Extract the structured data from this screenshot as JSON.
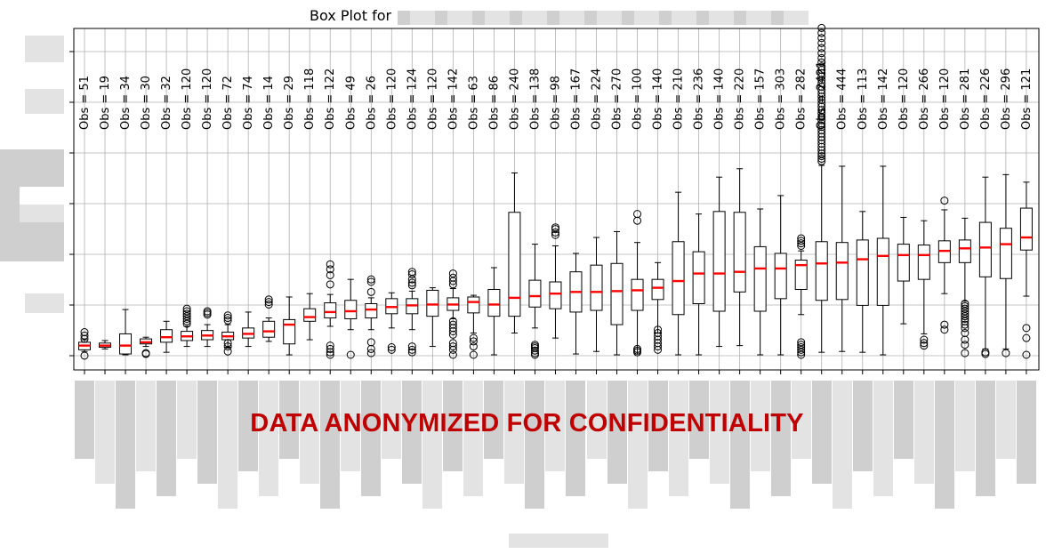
{
  "chart_data": {
    "type": "box",
    "title": "Box Plot for",
    "grid": true,
    "median_color": "#ff0000",
    "box_color": "#000000",
    "obs_prefix": "Obs = ",
    "series": [
      {
        "obs": 51,
        "whislo": 0.2,
        "q1": 0.3,
        "med": 0.55,
        "q3": 0.75,
        "whishi": 0.9,
        "fliers": [
          -0.05,
          0.95,
          1.15,
          1.35
        ]
      },
      {
        "obs": 19,
        "whislo": 0.35,
        "q1": 0.45,
        "med": 0.55,
        "q3": 0.7,
        "whishi": 0.85,
        "fliers": []
      },
      {
        "obs": 34,
        "whislo": 0.0,
        "q1": 0.05,
        "med": 0.55,
        "q3": 1.25,
        "whishi": 2.7,
        "fliers": []
      },
      {
        "obs": 30,
        "whislo": 0.5,
        "q1": 0.65,
        "med": 0.75,
        "q3": 0.95,
        "whishi": 1.05,
        "fliers": [
          0.05,
          0.1
        ]
      },
      {
        "obs": 32,
        "whislo": 0.15,
        "q1": 0.75,
        "med": 1.05,
        "q3": 1.5,
        "whishi": 2.0,
        "fliers": []
      },
      {
        "obs": 120,
        "whislo": 0.5,
        "q1": 0.85,
        "med": 1.1,
        "q3": 1.4,
        "whishi": 1.7,
        "fliers": [
          1.85,
          2.0,
          2.15,
          2.3,
          2.45,
          2.6,
          2.75
        ]
      },
      {
        "obs": 120,
        "whislo": 0.5,
        "q1": 0.9,
        "med": 1.15,
        "q3": 1.45,
        "whishi": 1.8,
        "fliers": [
          2.4,
          2.5,
          2.6
        ]
      },
      {
        "obs": 72,
        "whislo": 0.45,
        "q1": 0.9,
        "med": 1.1,
        "q3": 1.35,
        "whishi": 1.8,
        "fliers": [
          0.2,
          0.5,
          0.7,
          2.05,
          2.2,
          2.35
        ]
      },
      {
        "obs": 74,
        "whislo": 0.5,
        "q1": 1.0,
        "med": 1.25,
        "q3": 1.6,
        "whishi": 2.55,
        "fliers": []
      },
      {
        "obs": 14,
        "whislo": 0.8,
        "q1": 1.05,
        "med": 1.4,
        "q3": 2.0,
        "whishi": 2.2,
        "fliers": [
          3.0,
          3.15,
          3.3
        ]
      },
      {
        "obs": 29,
        "whislo": 0.0,
        "q1": 0.65,
        "med": 1.8,
        "q3": 2.1,
        "whishi": 3.45,
        "fliers": []
      },
      {
        "obs": 118,
        "whislo": 0.9,
        "q1": 2.0,
        "med": 2.25,
        "q3": 2.75,
        "whishi": 3.65,
        "fliers": []
      },
      {
        "obs": 122,
        "whislo": 1.7,
        "q1": 2.2,
        "med": 2.55,
        "q3": 3.1,
        "whishi": 3.6,
        "fliers": [
          0.0,
          0.15,
          0.35,
          0.55,
          4.2,
          4.75,
          5.1,
          5.4
        ]
      },
      {
        "obs": 49,
        "whislo": 1.5,
        "q1": 2.15,
        "med": 2.6,
        "q3": 3.25,
        "whishi": 4.5,
        "fliers": [
          0.0
        ]
      },
      {
        "obs": 26,
        "whislo": 1.5,
        "q1": 2.2,
        "med": 2.7,
        "q3": 3.05,
        "whishi": 3.4,
        "fliers": [
          0.1,
          0.35,
          0.75,
          3.75,
          4.35,
          4.5
        ]
      },
      {
        "obs": 120,
        "whislo": 1.6,
        "q1": 2.45,
        "med": 2.85,
        "q3": 3.35,
        "whishi": 3.7,
        "fliers": [
          0.3,
          0.45
        ]
      },
      {
        "obs": 124,
        "whislo": 1.5,
        "q1": 2.45,
        "med": 2.95,
        "q3": 3.35,
        "whishi": 3.8,
        "fliers": [
          0.15,
          0.3,
          0.5,
          4.15,
          4.3,
          4.5,
          4.8,
          4.95
        ]
      },
      {
        "obs": 120,
        "whislo": 0.5,
        "q1": 2.3,
        "med": 3.0,
        "q3": 3.85,
        "whishi": 4.0,
        "fliers": []
      },
      {
        "obs": 142,
        "whislo": 2.15,
        "q1": 2.65,
        "med": 3.0,
        "q3": 3.4,
        "whishi": 3.95,
        "fliers": [
          0.0,
          0.3,
          0.5,
          0.7,
          1.2,
          1.4,
          1.6,
          1.8,
          2.0,
          4.2,
          4.4,
          4.6,
          4.85
        ]
      },
      {
        "obs": 63,
        "whislo": 1.3,
        "q1": 2.5,
        "med": 3.15,
        "q3": 3.45,
        "whishi": 3.55,
        "fliers": [
          0.0,
          0.5,
          0.8,
          1.0
        ]
      },
      {
        "obs": 86,
        "whislo": 0.0,
        "q1": 2.3,
        "med": 3.0,
        "q3": 3.9,
        "whishi": 5.2,
        "fliers": []
      },
      {
        "obs": 240,
        "whislo": 1.3,
        "q1": 2.3,
        "med": 3.4,
        "q3": 8.5,
        "whishi": 10.85,
        "fliers": []
      },
      {
        "obs": 138,
        "whislo": 1.6,
        "q1": 2.85,
        "med": 3.5,
        "q3": 4.45,
        "whishi": 6.6,
        "fliers": [
          0.0,
          0.1,
          0.25,
          0.4,
          0.5,
          0.6
        ]
      },
      {
        "obs": 98,
        "whislo": 1.0,
        "q1": 2.75,
        "med": 3.65,
        "q3": 4.35,
        "whishi": 6.5,
        "fliers": [
          7.15,
          7.3,
          7.5,
          7.6
        ]
      },
      {
        "obs": 167,
        "whislo": 0.05,
        "q1": 2.55,
        "med": 3.75,
        "q3": 4.95,
        "whishi": 6.05,
        "fliers": []
      },
      {
        "obs": 224,
        "whislo": 0.2,
        "q1": 2.65,
        "med": 3.75,
        "q3": 5.35,
        "whishi": 7.0,
        "fliers": []
      },
      {
        "obs": 270,
        "whislo": 0.0,
        "q1": 1.8,
        "med": 3.8,
        "q3": 5.45,
        "whishi": 7.35,
        "fliers": []
      },
      {
        "obs": 100,
        "whislo": 0.05,
        "q1": 2.65,
        "med": 3.85,
        "q3": 4.5,
        "whishi": 6.7,
        "fliers": [
          0.15,
          0.25,
          0.35,
          8.0,
          8.4
        ]
      },
      {
        "obs": 140,
        "whislo": 1.3,
        "q1": 3.3,
        "med": 4.0,
        "q3": 4.5,
        "whishi": 5.5,
        "fliers": [
          0.3,
          0.5,
          0.7,
          0.9,
          1.1,
          1.3,
          1.5
        ]
      },
      {
        "obs": 210,
        "whislo": 0.0,
        "q1": 2.4,
        "med": 4.4,
        "q3": 6.75,
        "whishi": 9.7,
        "fliers": []
      },
      {
        "obs": 236,
        "whislo": 0.0,
        "q1": 3.05,
        "med": 4.85,
        "q3": 6.15,
        "whishi": 8.4,
        "fliers": []
      },
      {
        "obs": 140,
        "whislo": 0.5,
        "q1": 2.6,
        "med": 4.85,
        "q3": 8.55,
        "whishi": 10.6,
        "fliers": []
      },
      {
        "obs": 220,
        "whislo": 0.55,
        "q1": 3.75,
        "med": 4.95,
        "q3": 8.5,
        "whishi": 11.1,
        "fliers": []
      },
      {
        "obs": 157,
        "whislo": 0.0,
        "q1": 2.6,
        "med": 5.15,
        "q3": 6.45,
        "whishi": 8.7,
        "fliers": []
      },
      {
        "obs": 303,
        "whislo": 0.0,
        "q1": 3.35,
        "med": 5.15,
        "q3": 6.05,
        "whishi": 9.5,
        "fliers": []
      },
      {
        "obs": 282,
        "whislo": 2.4,
        "q1": 3.9,
        "med": 5.35,
        "q3": 5.65,
        "whishi": 6.2,
        "fliers": [
          0.0,
          0.15,
          0.3,
          0.45,
          0.6,
          0.75,
          6.5,
          6.65,
          6.8,
          6.95
        ]
      },
      {
        "obs": 2421,
        "whislo": 0.15,
        "q1": 3.25,
        "med": 5.45,
        "q3": 6.75,
        "whishi": 11.3,
        "fliers": [
          11.55,
          11.7,
          11.85,
          12.0,
          12.2,
          12.4,
          12.6,
          12.8,
          13.0,
          13.2,
          13.4,
          13.6,
          13.8,
          14.0,
          14.2,
          14.4,
          14.6,
          14.8,
          15.0,
          15.2,
          15.4,
          15.6,
          15.8,
          16.0,
          16.2,
          16.4,
          16.6,
          16.8,
          17.0,
          17.2,
          17.45,
          17.7,
          18.0,
          18.3,
          18.6,
          18.9,
          19.2,
          19.5
        ]
      },
      {
        "obs": 444,
        "whislo": 0.2,
        "q1": 3.3,
        "med": 5.5,
        "q3": 6.7,
        "whishi": 11.25,
        "fliers": []
      },
      {
        "obs": 113,
        "whislo": 0.15,
        "q1": 2.95,
        "med": 5.7,
        "q3": 6.85,
        "whishi": 8.55,
        "fliers": []
      },
      {
        "obs": 142,
        "whislo": 0.0,
        "q1": 2.95,
        "med": 5.9,
        "q3": 6.95,
        "whishi": 11.25,
        "fliers": []
      },
      {
        "obs": 120,
        "whislo": 1.85,
        "q1": 4.4,
        "med": 5.95,
        "q3": 6.6,
        "whishi": 8.2,
        "fliers": []
      },
      {
        "obs": 266,
        "whislo": 1.25,
        "q1": 4.5,
        "med": 5.95,
        "q3": 6.55,
        "whishi": 8.0,
        "fliers": [
          0.55,
          0.7,
          0.9
        ]
      },
      {
        "obs": 120,
        "whislo": 3.65,
        "q1": 5.5,
        "med": 6.2,
        "q3": 6.8,
        "whishi": 8.65,
        "fliers": [
          1.5,
          1.8,
          9.2
        ]
      },
      {
        "obs": 281,
        "whislo": 3.2,
        "q1": 5.5,
        "med": 6.35,
        "q3": 6.85,
        "whishi": 8.15,
        "fliers": [
          0.1,
          0.6,
          0.9,
          1.3,
          1.6,
          1.8,
          2.0,
          2.15,
          2.3,
          2.45,
          2.6,
          2.75,
          2.9,
          3.05
        ]
      },
      {
        "obs": 226,
        "whislo": 0.35,
        "q1": 4.65,
        "med": 6.4,
        "q3": 7.9,
        "whishi": 10.6,
        "fliers": [
          0.05,
          0.15
        ]
      },
      {
        "obs": 296,
        "whislo": 0.35,
        "q1": 4.55,
        "med": 6.6,
        "q3": 7.55,
        "whishi": 10.75,
        "fliers": [
          0.1
        ]
      },
      {
        "obs": 121,
        "whislo": 3.5,
        "q1": 6.25,
        "med": 7.0,
        "q3": 8.75,
        "whishi": 10.3,
        "fliers": [
          0.0,
          1.0,
          1.6
        ]
      }
    ]
  },
  "watermark": {
    "text": "DATA ANONYMIZED FOR CONFIDENTIALITY",
    "color": "#c00000",
    "pixel_gray": "#e3e3e3",
    "pixel_gray_dark": "#cfcfcf"
  }
}
